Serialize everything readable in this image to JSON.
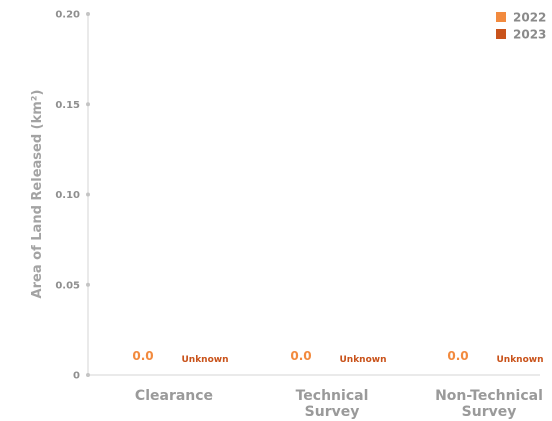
{
  "chart_data": {
    "type": "bar",
    "categories": [
      "Clearance",
      "Technical Survey",
      "Non-Technical Survey"
    ],
    "category_lines": [
      [
        "Clearance"
      ],
      [
        "Technical",
        "Survey"
      ],
      [
        "Non-Technical",
        "Survey"
      ]
    ],
    "series": [
      {
        "name": "2022",
        "values": [
          0.0,
          0.0,
          0.0
        ],
        "labels": [
          "0.0",
          "0.0",
          "0.0"
        ],
        "color": "#f28a3e"
      },
      {
        "name": "2023",
        "values": [
          null,
          null,
          null
        ],
        "labels": [
          "Unknown",
          "Unknown",
          "Unknown"
        ],
        "color": "#c9531b"
      }
    ],
    "ylabel": "Area of Land Released (km²)",
    "ylim": [
      0,
      0.2
    ],
    "yticks": [
      0,
      0.05,
      0.1,
      0.15,
      0.2
    ],
    "ytick_labels": [
      "0",
      "0.05",
      "0.10",
      "0.15",
      "0.20"
    ],
    "grid": false,
    "legend_position": "top-right"
  }
}
